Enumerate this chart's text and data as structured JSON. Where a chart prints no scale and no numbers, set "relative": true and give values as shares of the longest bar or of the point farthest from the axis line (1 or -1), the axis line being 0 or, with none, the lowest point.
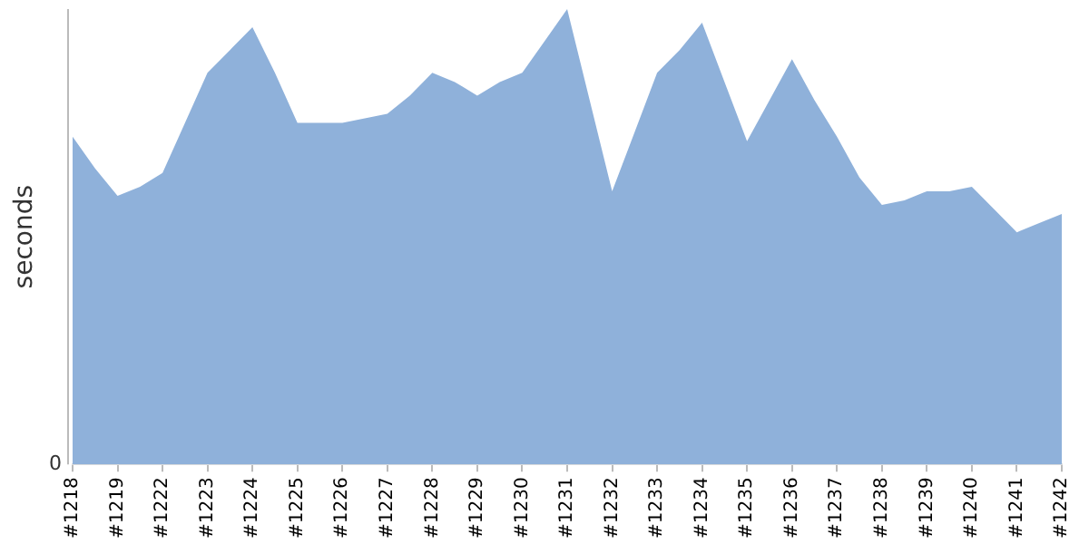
{
  "chart_data": {
    "type": "area",
    "ylabel": "seconds",
    "relative": true,
    "color": "#8fb1da",
    "annotations": [
      "0"
    ],
    "categories": [
      "#1218",
      null,
      "#1219",
      null,
      "#1222",
      null,
      "#1223",
      null,
      "#1224",
      null,
      "#1225",
      null,
      "#1226",
      null,
      "#1227",
      null,
      "#1228",
      null,
      "#1229",
      null,
      "#1230",
      null,
      "#1231",
      null,
      "#1232",
      null,
      "#1233",
      null,
      "#1234",
      null,
      "#1235",
      null,
      "#1236",
      null,
      "#1237",
      null,
      "#1238",
      null,
      "#1239",
      null,
      "#1240",
      null,
      "#1241",
      null,
      "#1242"
    ],
    "values": [
      0.72,
      0.65,
      0.59,
      0.61,
      0.64,
      0.75,
      0.86,
      0.91,
      0.96,
      0.86,
      0.75,
      0.75,
      0.75,
      0.76,
      0.77,
      0.81,
      0.86,
      0.84,
      0.81,
      0.84,
      0.86,
      0.93,
      1,
      0.8,
      0.6,
      0.73,
      0.86,
      0.91,
      0.97,
      0.84,
      0.71,
      0.8,
      0.89,
      0.8,
      0.72,
      0.63,
      0.57,
      0.58,
      0.6,
      0.6,
      0.61,
      0.56,
      0.51,
      0.53,
      0.55
    ]
  }
}
